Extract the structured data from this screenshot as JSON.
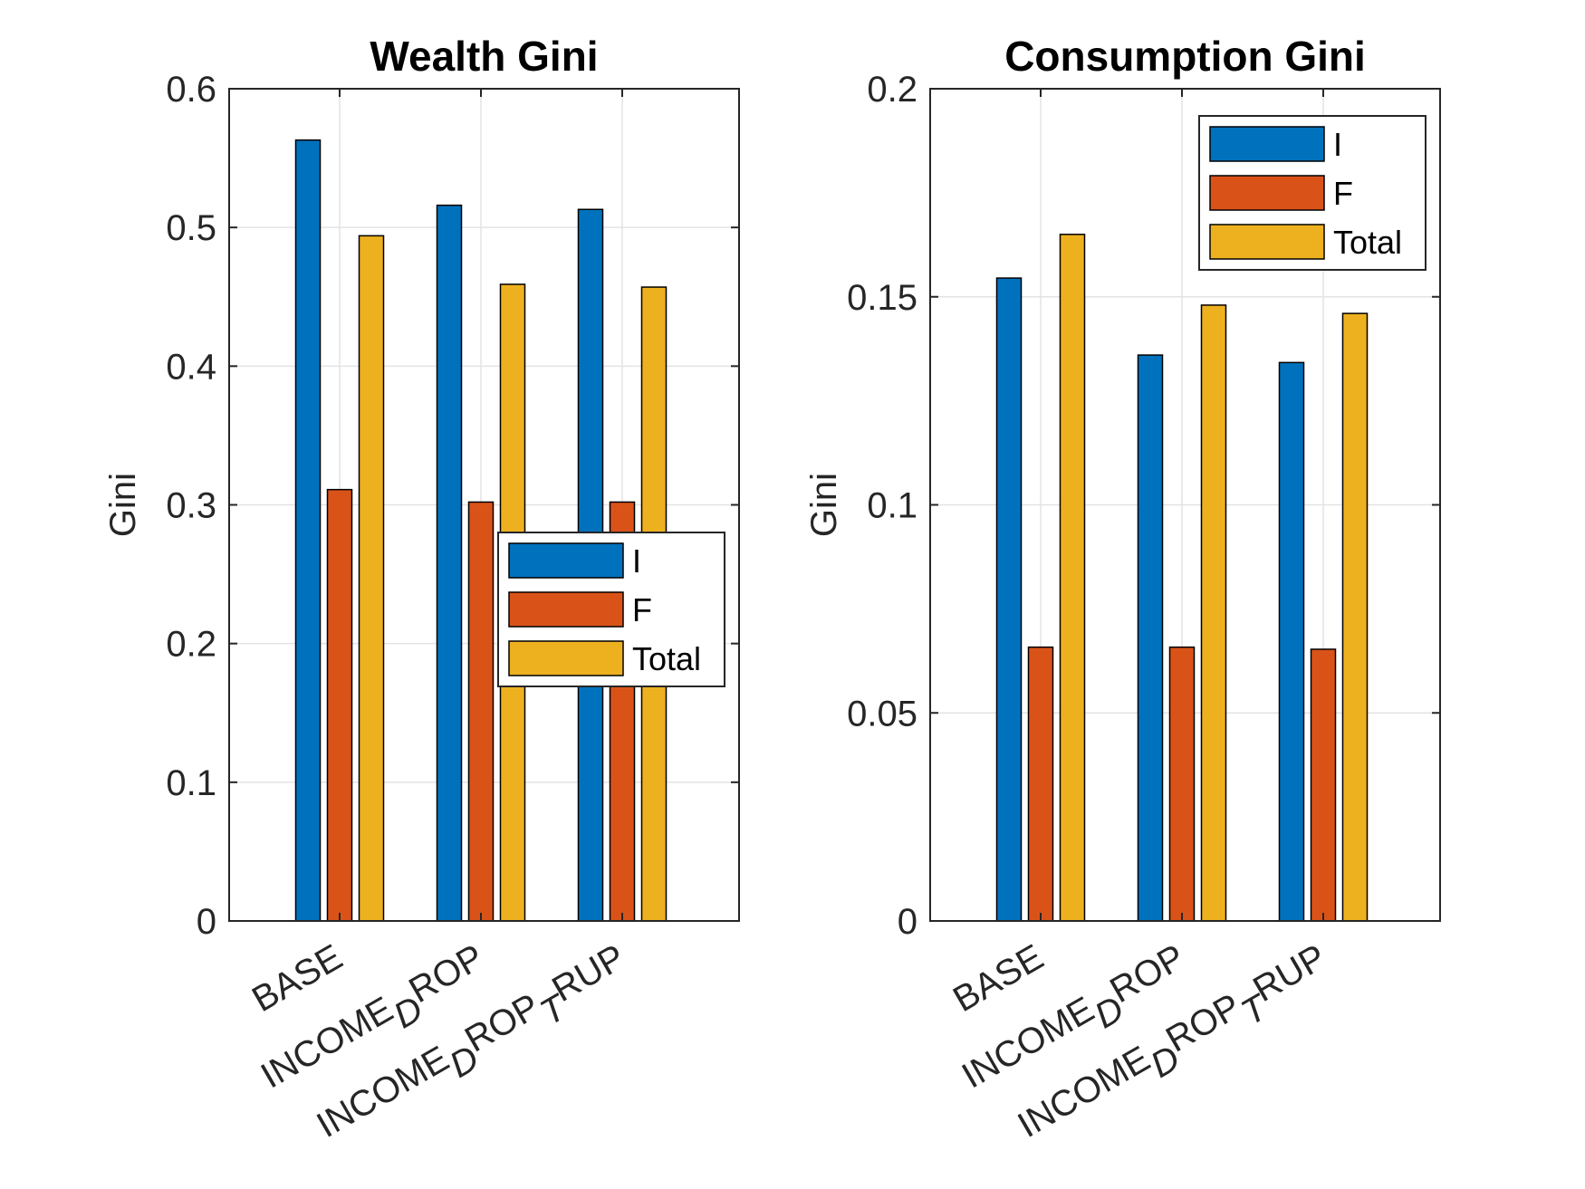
{
  "chart_data": [
    {
      "type": "bar",
      "title": "Wealth Gini",
      "xlabel": "",
      "ylabel": "Gini",
      "ylim": [
        0,
        0.6
      ],
      "yticks": [
        "0",
        "0.1",
        "0.2",
        "0.3",
        "0.4",
        "0.5",
        "0.6"
      ],
      "categories": [
        {
          "base": "BASE",
          "parts": []
        },
        {
          "base": "INCOME",
          "parts": [
            {
              "sub": "D"
            },
            {
              "text": "ROP"
            }
          ]
        },
        {
          "base": "INCOME",
          "parts": [
            {
              "sub": "D"
            },
            {
              "text": "ROP"
            },
            {
              "sub": "T"
            },
            {
              "text": "RUP"
            }
          ]
        }
      ],
      "series": [
        {
          "name": "I",
          "color": "#0072BD",
          "values": [
            0.563,
            0.516,
            0.513
          ]
        },
        {
          "name": "F",
          "color": "#D95319",
          "values": [
            0.311,
            0.302,
            0.302
          ]
        },
        {
          "name": "Total",
          "color": "#EDB120",
          "values": [
            0.494,
            0.459,
            0.457
          ]
        }
      ],
      "grid": true,
      "legend_position": "middle-right"
    },
    {
      "type": "bar",
      "title": "Consumption Gini",
      "xlabel": "",
      "ylabel": "Gini",
      "ylim": [
        0,
        0.2
      ],
      "yticks": [
        "0",
        "0.05",
        "0.1",
        "0.15",
        "0.2"
      ],
      "categories": [
        {
          "base": "BASE",
          "parts": []
        },
        {
          "base": "INCOME",
          "parts": [
            {
              "sub": "D"
            },
            {
              "text": "ROP"
            }
          ]
        },
        {
          "base": "INCOME",
          "parts": [
            {
              "sub": "D"
            },
            {
              "text": "ROP"
            },
            {
              "sub": "T"
            },
            {
              "text": "RUP"
            }
          ]
        }
      ],
      "series": [
        {
          "name": "I",
          "color": "#0072BD",
          "values": [
            0.1545,
            0.136,
            0.1342
          ]
        },
        {
          "name": "F",
          "color": "#D95319",
          "values": [
            0.0658,
            0.0658,
            0.0653
          ]
        },
        {
          "name": "Total",
          "color": "#EDB120",
          "values": [
            0.165,
            0.148,
            0.146
          ]
        }
      ],
      "grid": true,
      "legend_position": "top-right"
    }
  ]
}
